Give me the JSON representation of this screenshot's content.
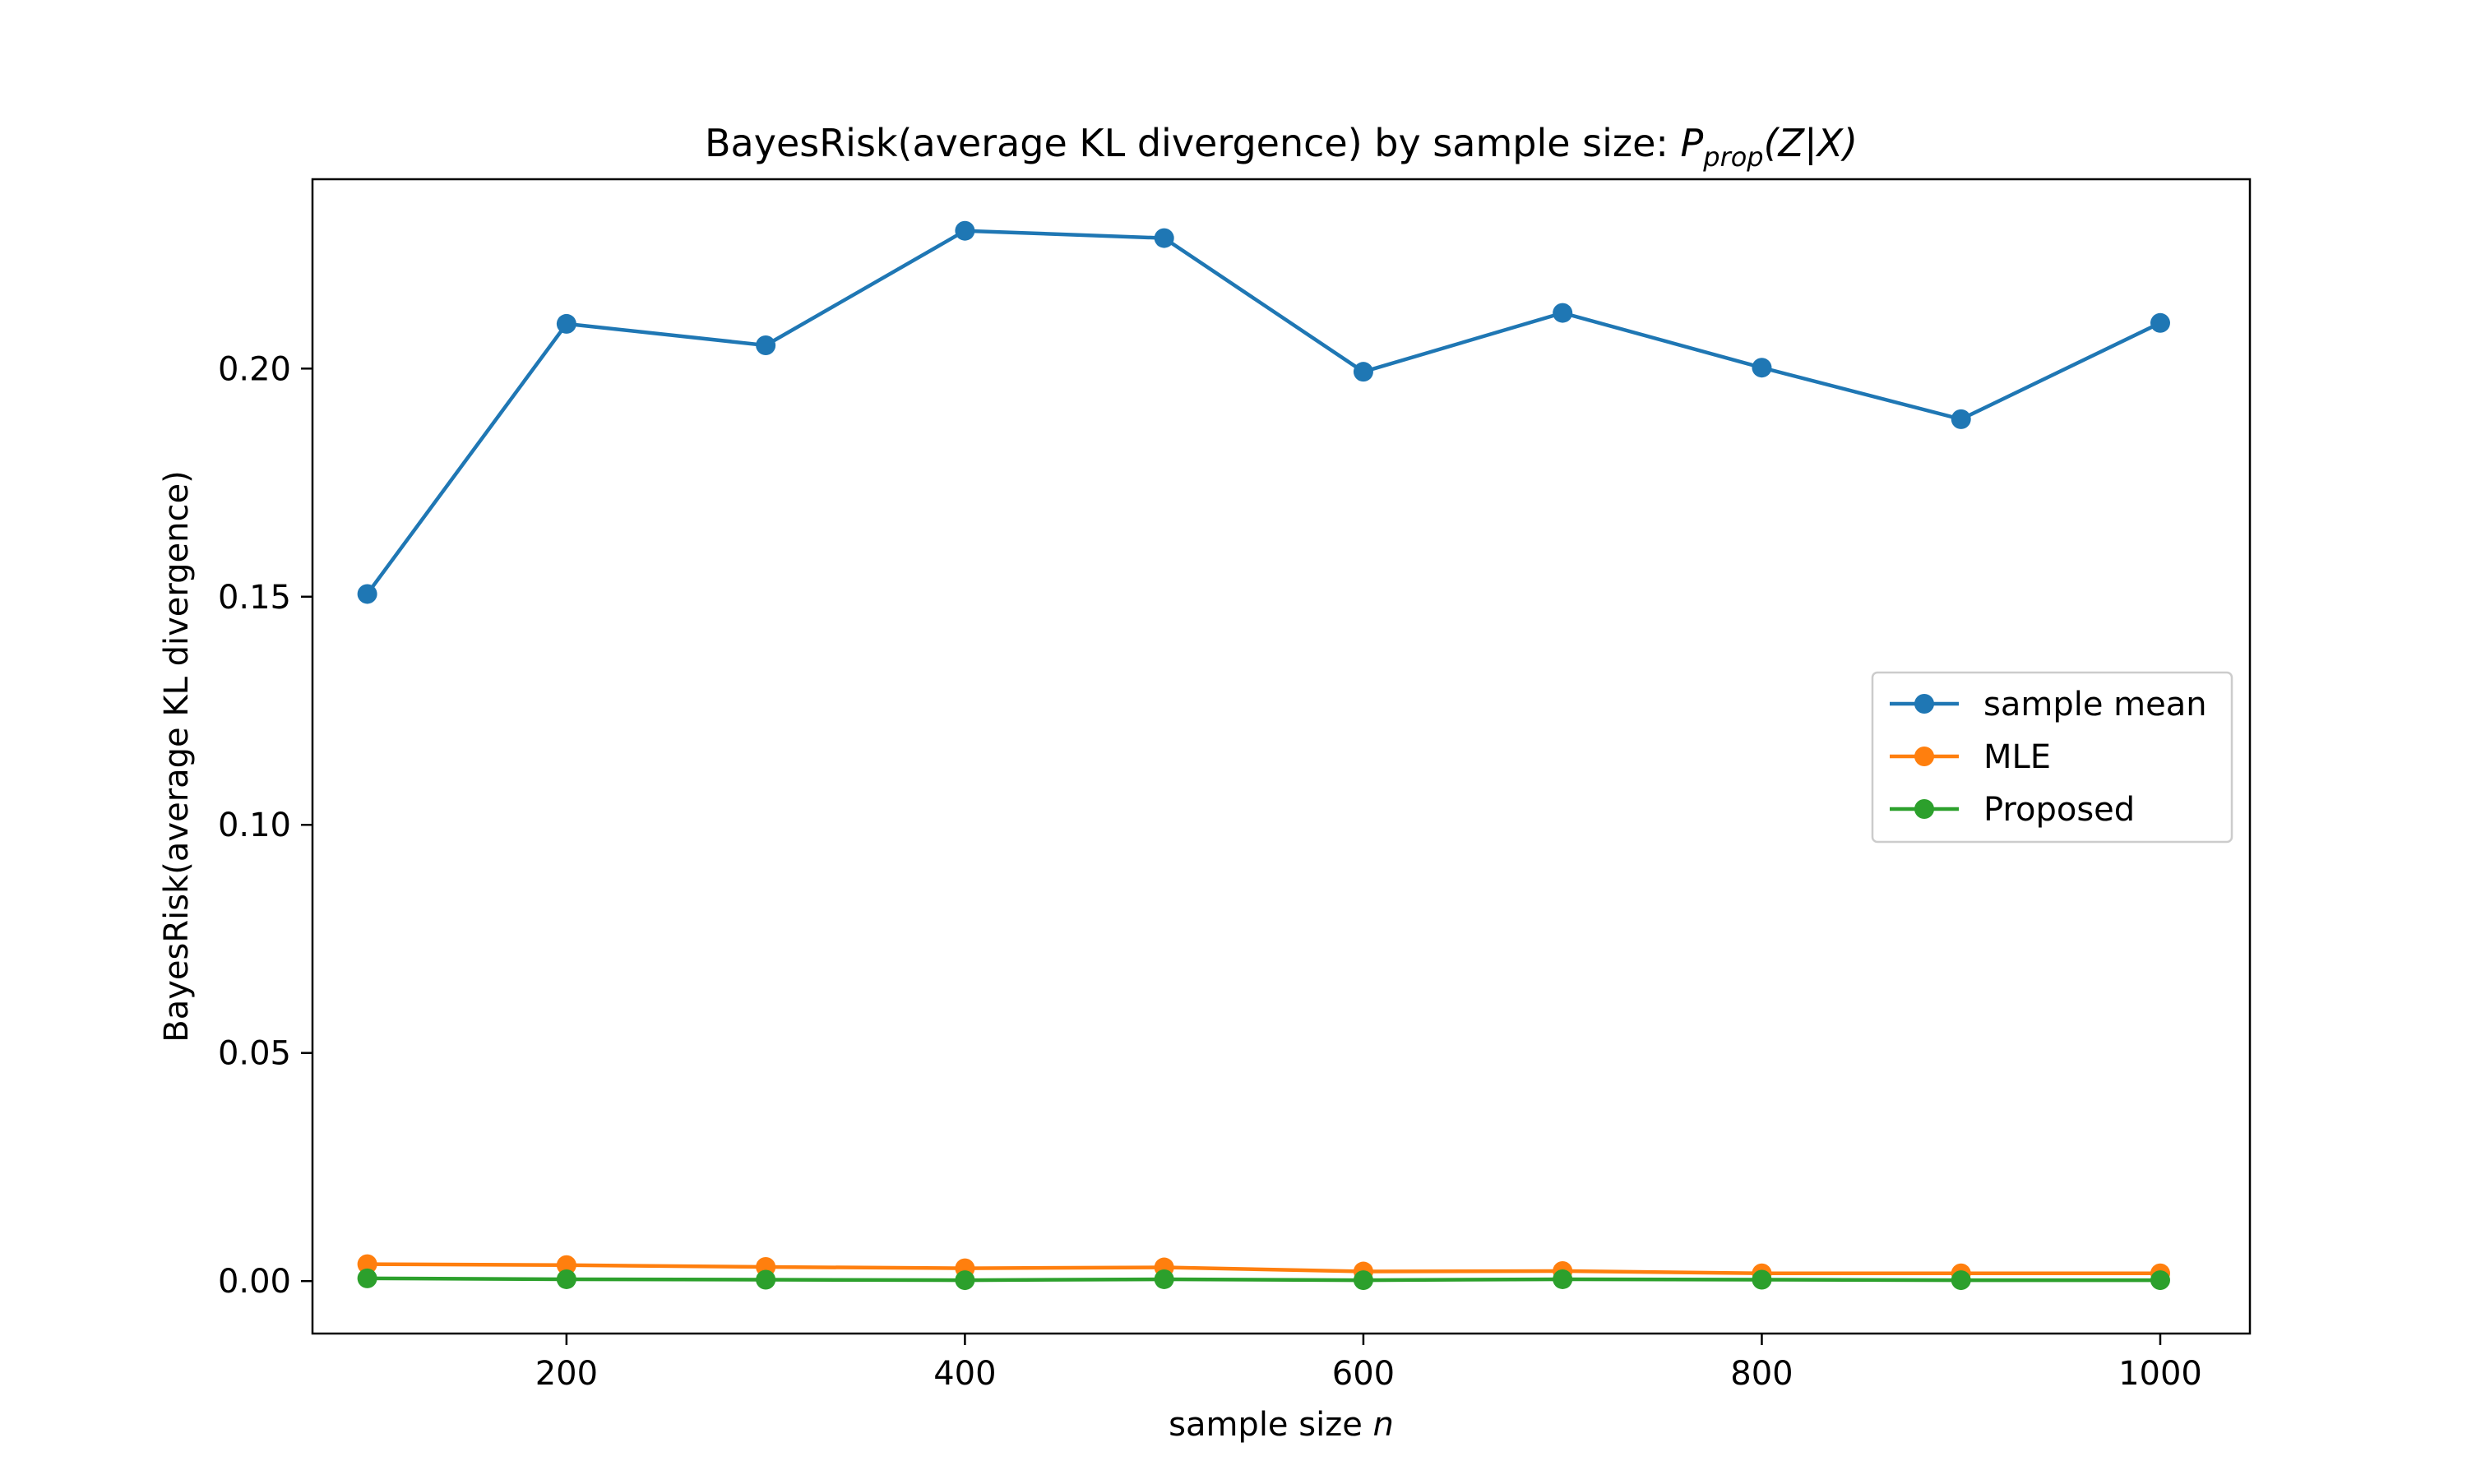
{
  "chart_data": {
    "type": "line",
    "title": "BayesRisk(average KL divergence) by sample size: ",
    "title_math": {
      "base": "P",
      "subscript": "prop",
      "args": "(Z|X)"
    },
    "xlabel": "sample size ",
    "xlabel_math": "n",
    "ylabel": "BayesRisk(average KL divergence)",
    "xlim": [
      72.5,
      1045
    ],
    "ylim": [
      -0.0115,
      0.2415
    ],
    "xticks": [
      200,
      400,
      600,
      800,
      1000
    ],
    "xtick_labels": [
      "200",
      "400",
      "600",
      "800",
      "1000"
    ],
    "yticks": [
      0.0,
      0.05,
      0.1,
      0.15,
      0.2
    ],
    "ytick_labels": [
      "0.00",
      "0.05",
      "0.10",
      "0.15",
      "0.20"
    ],
    "grid": false,
    "legend_position": "center-right",
    "x": [
      100,
      200,
      300,
      400,
      500,
      600,
      700,
      800,
      900,
      1000
    ],
    "series": [
      {
        "name": "sample mean",
        "color": "#1f77b4",
        "values": [
          0.1506,
          0.2098,
          0.2051,
          0.2302,
          0.2286,
          0.1993,
          0.2122,
          0.2002,
          0.1889,
          0.21
        ]
      },
      {
        "name": "MLE",
        "color": "#ff7f0e",
        "values": [
          0.0037,
          0.0035,
          0.0031,
          0.0028,
          0.003,
          0.0021,
          0.0022,
          0.0017,
          0.0017,
          0.0017
        ]
      },
      {
        "name": "Proposed",
        "color": "#2ca02c",
        "values": [
          0.0006,
          0.0004,
          0.0003,
          0.0002,
          0.0004,
          0.0002,
          0.0004,
          0.0003,
          0.0002,
          0.0002
        ]
      }
    ]
  }
}
